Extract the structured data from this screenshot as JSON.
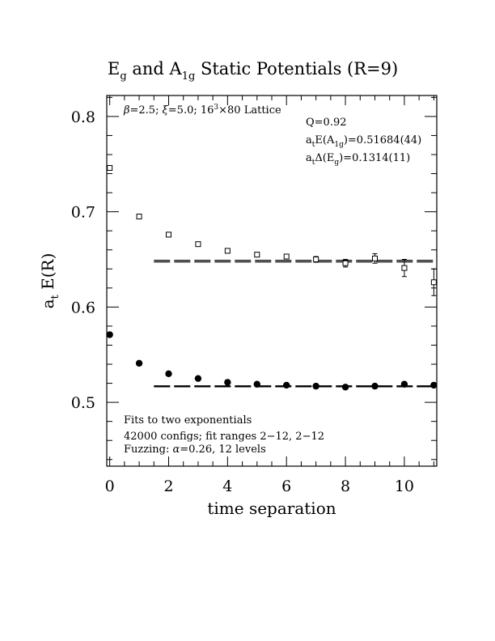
{
  "chart_data": {
    "type": "scatter",
    "title_parts": {
      "e": "E",
      "e_sub": "g",
      "and": " and A",
      "a_sub": "1g",
      "rest": " Static Potentials (R=9)"
    },
    "xlabel": "time separation",
    "ylabel_parts": {
      "a": "a",
      "a_sub": "t",
      "rest": " E(R)"
    },
    "xlim": [
      -0.1,
      11.1
    ],
    "ylim": [
      0.433,
      0.822
    ],
    "x_ticks": [
      0,
      2,
      4,
      6,
      8,
      10
    ],
    "y_ticks": [
      0.5,
      0.6,
      0.7,
      0.8
    ],
    "x_minor_step": 0.5,
    "y_minor_step": 0.02,
    "series": [
      {
        "marker": "open-square",
        "x": [
          0,
          1,
          2,
          3,
          4,
          5,
          6,
          7,
          8,
          9,
          10,
          11
        ],
        "y": [
          0.746,
          0.695,
          0.676,
          0.666,
          0.659,
          0.655,
          0.653,
          0.65,
          0.646,
          0.651,
          0.641,
          0.626
        ],
        "err": [
          0.0015,
          0.0015,
          0.0015,
          0.0018,
          0.002,
          0.002,
          0.0025,
          0.003,
          0.004,
          0.005,
          0.009,
          0.014
        ]
      },
      {
        "marker": "filled-circle",
        "x": [
          0,
          1,
          2,
          3,
          4,
          5,
          6,
          7,
          8,
          9,
          10,
          11
        ],
        "y": [
          0.571,
          0.541,
          0.53,
          0.525,
          0.521,
          0.519,
          0.518,
          0.517,
          0.516,
          0.517,
          0.519,
          0.518
        ],
        "err": [
          0.0005,
          0.0005,
          0.0005,
          0.0005,
          0.0005,
          0.0005,
          0.0006,
          0.0007,
          0.0008,
          0.001,
          0.0012,
          0.0015
        ]
      }
    ],
    "fit_lines": [
      {
        "x_range": [
          1.5,
          11.1
        ],
        "y": 0.6482,
        "band": 0.00085
      },
      {
        "x_range": [
          1.5,
          11.1
        ],
        "y": 0.5168,
        "band": 0.00044
      }
    ],
    "annotations": {
      "lattice": {
        "beta": "β",
        "beta_val": "=2.5; ",
        "xi": "ξ",
        "xi_val": "=5.0; 16",
        "cube": "3",
        "rest": "×80 Lattice"
      },
      "q": "Q=0.92",
      "ea1g": {
        "a": "a",
        "t": "t",
        "mid": "E(A",
        "sub": "1g",
        "val": ")=0.51684(44)"
      },
      "deg": {
        "a": "a",
        "t": "t",
        "mid": "Δ(E",
        "sub": "g",
        "val": ")=0.1314(11)"
      },
      "fits": "Fits to two exponentials",
      "configs": "42000 configs; fit ranges 2−12, 2−12",
      "fuzz": {
        "pre": "Fuzzing: ",
        "alpha": "α",
        "rest": "=0.26, 12 levels"
      }
    }
  }
}
